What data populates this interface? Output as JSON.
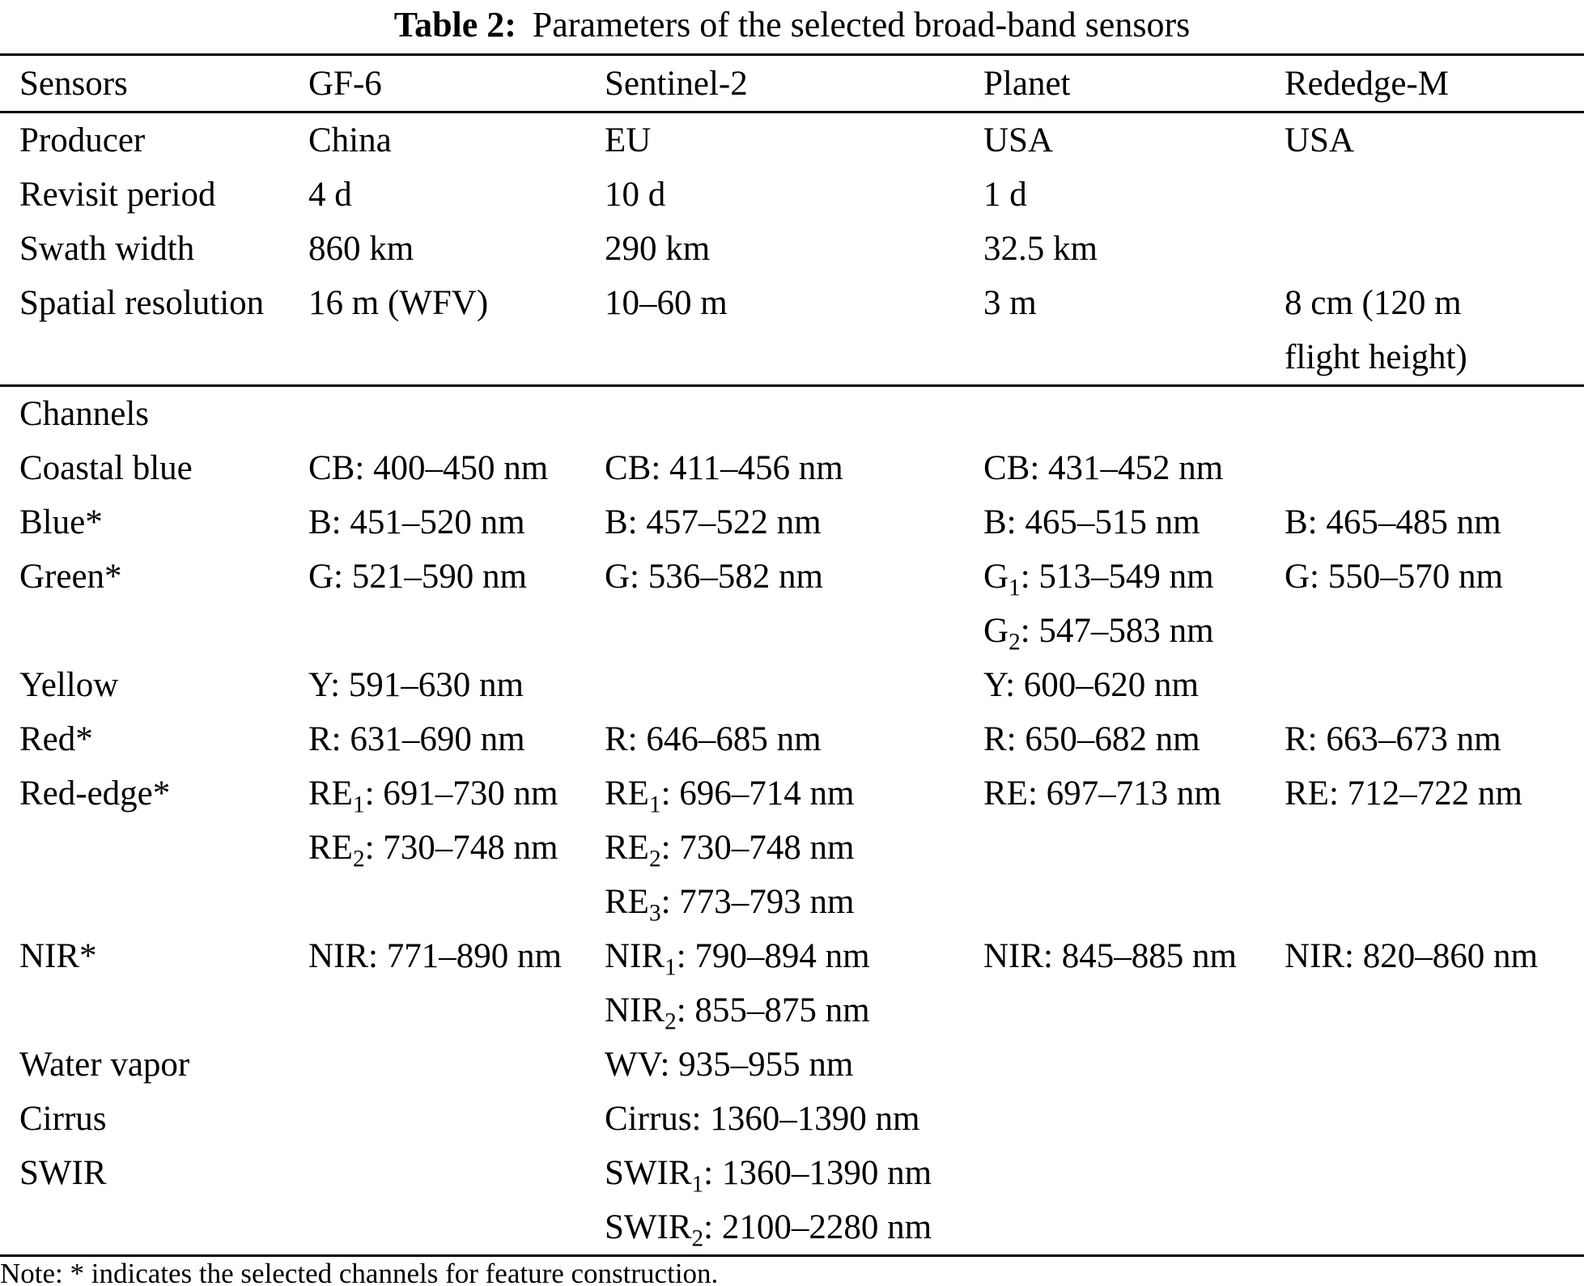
{
  "title": {
    "label": "Table 2:",
    "text": "Parameters of the selected broad-band sensors"
  },
  "colors": {
    "background": "#ffffff",
    "text": "#000000",
    "rule": "#000000"
  },
  "table": {
    "columns": [
      "Sensors",
      "GF-6",
      "Sentinel-2",
      "Planet",
      "Rededge-M"
    ],
    "rows": [
      {
        "cells": [
          [
            "Producer"
          ],
          [
            "China"
          ],
          [
            "EU"
          ],
          [
            "USA"
          ],
          [
            "USA"
          ]
        ]
      },
      {
        "cells": [
          [
            "Revisit period"
          ],
          [
            "4 d"
          ],
          [
            "10 d"
          ],
          [
            "1 d"
          ],
          []
        ]
      },
      {
        "cells": [
          [
            "Swath width"
          ],
          [
            "860 km"
          ],
          [
            "290 km"
          ],
          [
            "32.5 km"
          ],
          []
        ]
      },
      {
        "rule_after": true,
        "cells": [
          [
            "Spatial resolution"
          ],
          [
            "16 m (WFV)"
          ],
          [
            "10–60 m"
          ],
          [
            "3 m"
          ],
          [
            "8 cm (120 m",
            "flight height)"
          ]
        ]
      },
      {
        "cells": [
          [
            "Channels"
          ],
          [],
          [],
          [],
          []
        ]
      },
      {
        "cells": [
          [
            "Coastal blue"
          ],
          [
            "CB: 400–450 nm"
          ],
          [
            "CB: 411–456 nm"
          ],
          [
            "CB: 431–452 nm"
          ],
          []
        ]
      },
      {
        "cells": [
          [
            "Blue*"
          ],
          [
            "B: 451–520 nm"
          ],
          [
            "B: 457–522 nm"
          ],
          [
            "B: 465–515 nm"
          ],
          [
            "B: 465–485 nm"
          ]
        ]
      },
      {
        "cells": [
          [
            "Green*"
          ],
          [
            "G: 521–590 nm"
          ],
          [
            "G: 536–582 nm"
          ],
          [
            "G_1: 513–549 nm",
            "G_2: 547–583 nm"
          ],
          [
            "G: 550–570 nm"
          ]
        ]
      },
      {
        "cells": [
          [
            "Yellow"
          ],
          [
            "Y: 591–630 nm"
          ],
          [],
          [
            "Y: 600–620 nm"
          ],
          []
        ]
      },
      {
        "cells": [
          [
            "Red*"
          ],
          [
            "R: 631–690 nm"
          ],
          [
            "R: 646–685 nm"
          ],
          [
            "R: 650–682 nm"
          ],
          [
            "R: 663–673 nm"
          ]
        ]
      },
      {
        "cells": [
          [
            "Red-edge*"
          ],
          [
            "RE_1: 691–730 nm",
            "RE_2: 730–748 nm"
          ],
          [
            "RE_1: 696–714 nm",
            "RE_2: 730–748 nm",
            "RE_3: 773–793 nm"
          ],
          [
            "RE: 697–713 nm"
          ],
          [
            "RE: 712–722 nm"
          ]
        ]
      },
      {
        "cells": [
          [
            "NIR*"
          ],
          [
            "NIR: 771–890 nm"
          ],
          [
            "NIR_1: 790–894 nm",
            "NIR_2: 855–875 nm"
          ],
          [
            "NIR: 845–885 nm"
          ],
          [
            "NIR: 820–860 nm"
          ]
        ]
      },
      {
        "cells": [
          [
            "Water vapor"
          ],
          [],
          [
            "WV: 935–955 nm"
          ],
          [],
          []
        ]
      },
      {
        "cells": [
          [
            "Cirrus"
          ],
          [],
          [
            "Cirrus: 1360–1390 nm"
          ],
          [],
          []
        ]
      },
      {
        "cells": [
          [
            "SWIR"
          ],
          [],
          [
            "SWIR_1: 1360–1390 nm",
            "SWIR_2: 2100–2280 nm"
          ],
          [],
          []
        ]
      }
    ]
  },
  "note": "Note: * indicates the selected channels for feature construction."
}
